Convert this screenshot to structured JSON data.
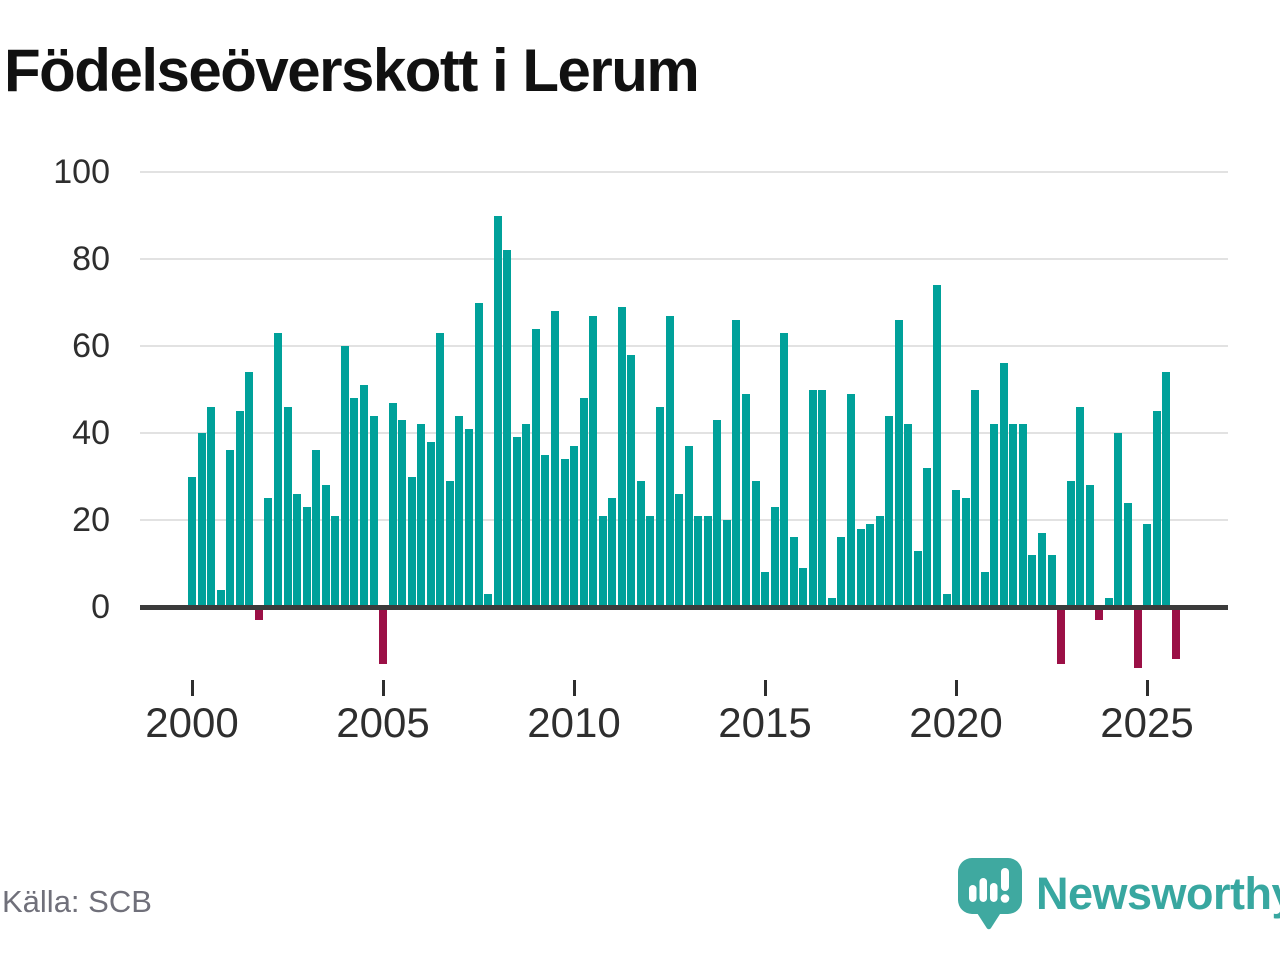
{
  "title": "Födelseöverskott i Lerum",
  "source": "Källa: SCB",
  "brand": {
    "name": "Newsworthy",
    "logo_icon": "speech-bubble-bar-chart-icon"
  },
  "colors": {
    "positive_bar": "#00a19a",
    "negative_bar": "#9b1046",
    "axis": "#3b3b3b",
    "gridline": "#e2e2e2",
    "tick_label": "#2e2e2e",
    "source_text": "#70707a",
    "brand_teal": "#38a7a0",
    "background": "#ffffff"
  },
  "chart_data": {
    "type": "bar",
    "title": "Födelseöverskott i Lerum",
    "xlabel": "",
    "ylabel": "",
    "frequency": "quarterly",
    "x_range": "2000 Q1 – 2025 Q4",
    "ylim": [
      -20,
      100
    ],
    "grid": "horizontal",
    "legend": "none",
    "y_ticks": [
      0,
      20,
      40,
      60,
      80,
      100
    ],
    "x_tick_labels": [
      "2000",
      "2005",
      "2010",
      "2015",
      "2020",
      "2025"
    ],
    "values_by_year": [
      {
        "year": 2000,
        "values": [
          30,
          40,
          46,
          4
        ]
      },
      {
        "year": 2001,
        "values": [
          36,
          45,
          54,
          -3
        ]
      },
      {
        "year": 2002,
        "values": [
          25,
          63,
          46,
          26
        ]
      },
      {
        "year": 2003,
        "values": [
          23,
          36,
          28,
          21
        ]
      },
      {
        "year": 2004,
        "values": [
          60,
          48,
          51,
          44
        ]
      },
      {
        "year": 2005,
        "values": [
          -13,
          47,
          43,
          30
        ]
      },
      {
        "year": 2006,
        "values": [
          42,
          38,
          63,
          29
        ]
      },
      {
        "year": 2007,
        "values": [
          44,
          41,
          70,
          3
        ]
      },
      {
        "year": 2008,
        "values": [
          90,
          82,
          39,
          42
        ]
      },
      {
        "year": 2009,
        "values": [
          64,
          35,
          68,
          34
        ]
      },
      {
        "year": 2010,
        "values": [
          37,
          48,
          67,
          21
        ]
      },
      {
        "year": 2011,
        "values": [
          25,
          69,
          58,
          29
        ]
      },
      {
        "year": 2012,
        "values": [
          21,
          46,
          67,
          26
        ]
      },
      {
        "year": 2013,
        "values": [
          37,
          21,
          21,
          43
        ]
      },
      {
        "year": 2014,
        "values": [
          20,
          66,
          49,
          29
        ]
      },
      {
        "year": 2015,
        "values": [
          8,
          23,
          63,
          16
        ]
      },
      {
        "year": 2016,
        "values": [
          9,
          50,
          50,
          2
        ]
      },
      {
        "year": 2017,
        "values": [
          16,
          49,
          18,
          19
        ]
      },
      {
        "year": 2018,
        "values": [
          21,
          44,
          66,
          42
        ]
      },
      {
        "year": 2019,
        "values": [
          13,
          32,
          74,
          3
        ]
      },
      {
        "year": 2020,
        "values": [
          27,
          25,
          50,
          8
        ]
      },
      {
        "year": 2021,
        "values": [
          42,
          56,
          42,
          42
        ]
      },
      {
        "year": 2022,
        "values": [
          12,
          17,
          12,
          -13
        ]
      },
      {
        "year": 2023,
        "values": [
          29,
          46,
          28,
          -3
        ]
      },
      {
        "year": 2024,
        "values": [
          2,
          40,
          24,
          -14
        ]
      },
      {
        "year": 2025,
        "values": [
          19,
          45,
          54,
          -12
        ]
      }
    ]
  }
}
